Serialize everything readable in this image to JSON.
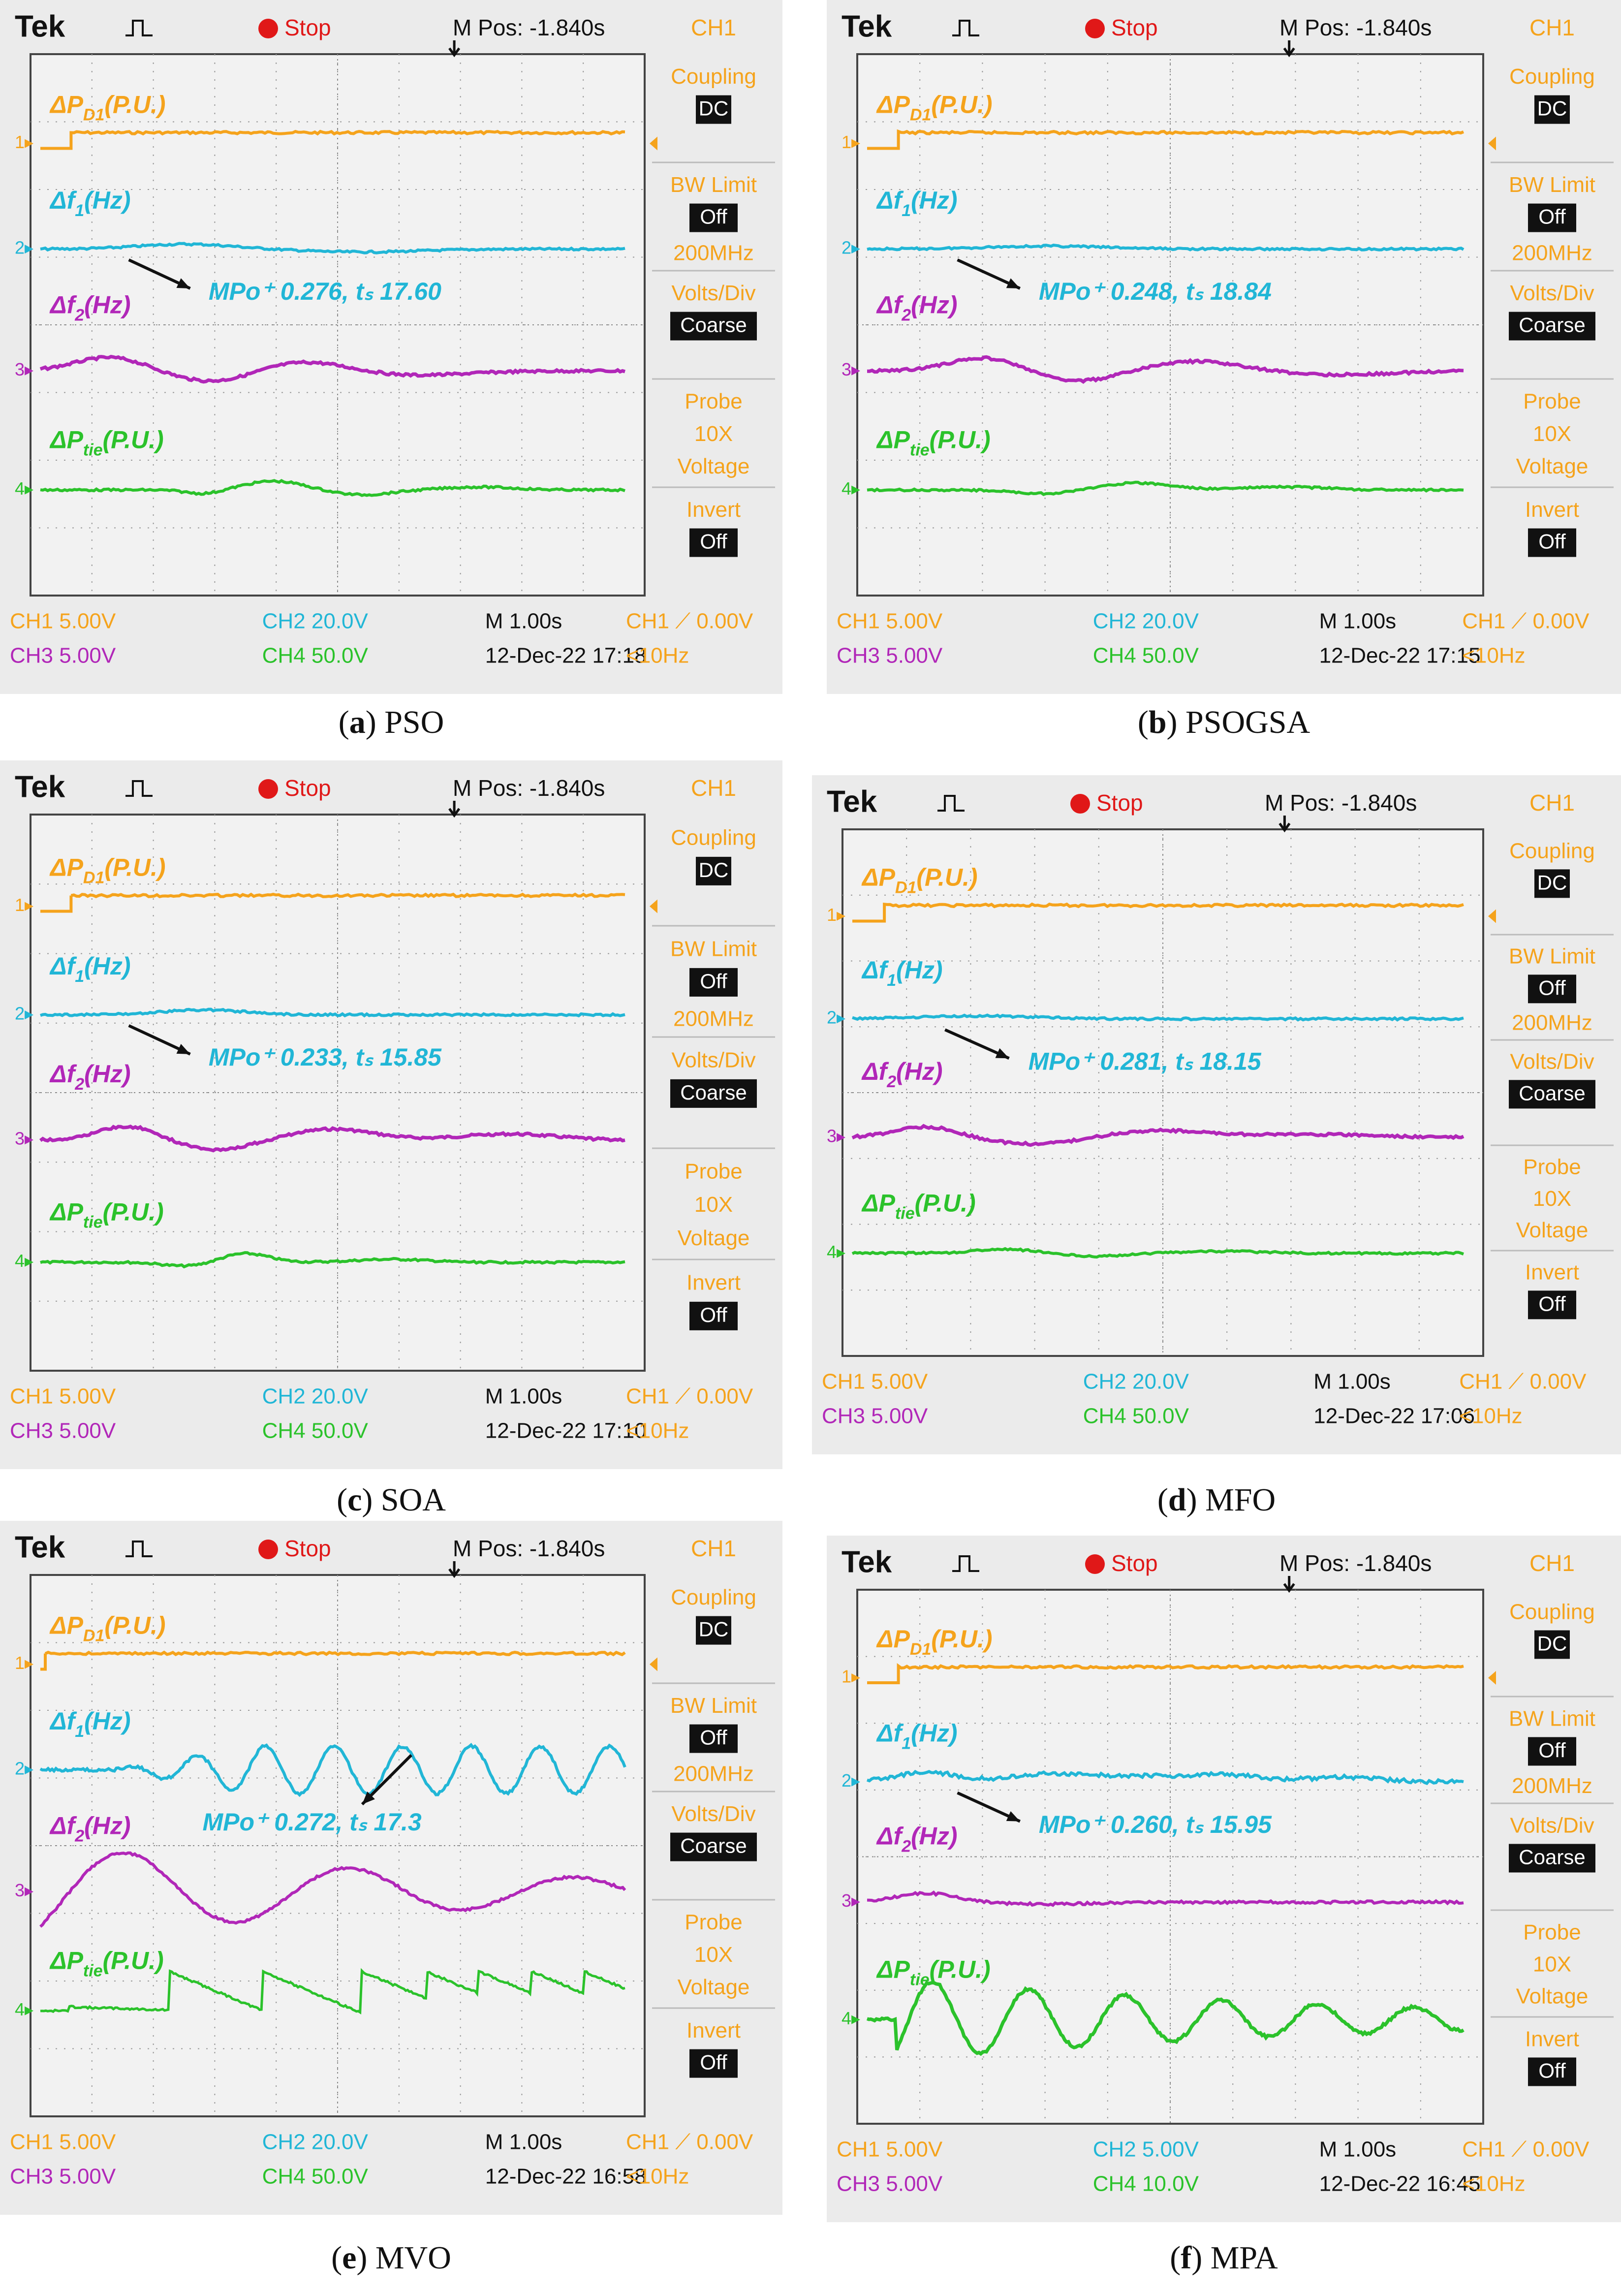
{
  "header": {
    "brand": "Tek",
    "stop": "Stop",
    "mpos": "M Pos: -1.840s",
    "ch_top": "CH1"
  },
  "menu": [
    {
      "title": "Coupling",
      "value": "DC"
    },
    {
      "title": "BW Limit",
      "value": "Off",
      "extra": "200MHz"
    },
    {
      "title": "Volts/Div",
      "value": "Coarse"
    },
    {
      "title": "Probe",
      "lines": [
        "10X",
        "Voltage"
      ]
    },
    {
      "title": "Invert",
      "value": "Off"
    }
  ],
  "labels": {
    "pd1": "ΔP_D1(P.U.)",
    "f1": "Δf_1(Hz)",
    "f2": "Δf_2(Hz)",
    "ptie": "ΔP_tie(P.U.)"
  },
  "colors": {
    "ch1": "#f5a31c",
    "ch2": "#21b6d6",
    "ch3": "#b127b8",
    "ch4": "#2bc22b",
    "screen": "#ebebeb"
  },
  "panels": [
    {
      "id": "a",
      "caption_letter": "a",
      "caption_name": "PSO",
      "mpo": "MPo⁺ 0.276, tₛ 17.60",
      "footer": {
        "ch1": "CH1  5.00V",
        "ch2": "CH2  20.0V",
        "timebase": "M 1.00s",
        "trig": "CH1 ⟋ 0.00V",
        "ch3": "CH3  5.00V",
        "ch4": "CH4  50.0V",
        "date": "12-Dec-22 17:18",
        "freq": "<10Hz"
      }
    },
    {
      "id": "b",
      "caption_letter": "b",
      "caption_name": "PSOGSA",
      "mpo": "MPo⁺ 0.248, tₛ 18.84",
      "footer": {
        "ch1": "CH1  5.00V",
        "ch2": "CH2  20.0V",
        "timebase": "M 1.00s",
        "trig": "CH1 ⟋ 0.00V",
        "ch3": "CH3  5.00V",
        "ch4": "CH4  50.0V",
        "date": "12-Dec-22 17:15",
        "freq": "<10Hz"
      }
    },
    {
      "id": "c",
      "caption_letter": "c",
      "caption_name": "SOA",
      "mpo": "MPo⁺ 0.233, tₛ 15.85",
      "footer": {
        "ch1": "CH1  5.00V",
        "ch2": "CH2  20.0V",
        "timebase": "M 1.00s",
        "trig": "CH1 ⟋ 0.00V",
        "ch3": "CH3  5.00V",
        "ch4": "CH4  50.0V",
        "date": "12-Dec-22 17:10",
        "freq": "<10Hz"
      }
    },
    {
      "id": "d",
      "caption_letter": "d",
      "caption_name": "MFO",
      "mpo": "MPo⁺ 0.281, tₛ 18.15",
      "footer": {
        "ch1": "CH1  5.00V",
        "ch2": "CH2  20.0V",
        "timebase": "M 1.00s",
        "trig": "CH1 ⟋ 0.00V",
        "ch3": "CH3  5.00V",
        "ch4": "CH4  50.0V",
        "date": "12-Dec-22 17:06",
        "freq": "<10Hz"
      }
    },
    {
      "id": "e",
      "caption_letter": "e",
      "caption_name": "MVO",
      "mpo": "MPo⁺ 0.272, tₛ 17.3",
      "footer": {
        "ch1": "CH1  5.00V",
        "ch2": "CH2  20.0V",
        "timebase": "M 1.00s",
        "trig": "CH1 ⟋ 0.00V",
        "ch3": "CH3  5.00V",
        "ch4": "CH4  50.0V",
        "date": "12-Dec-22 16:58",
        "freq": "<10Hz"
      }
    },
    {
      "id": "f",
      "caption_letter": "f",
      "caption_name": "MPA",
      "mpo": "MPo⁺ 0.260, tₛ 15.95",
      "footer": {
        "ch1": "CH1  5.00V",
        "ch2": "CH2  5.00V",
        "timebase": "M 1.00s",
        "trig": "CH1 ⟋ 0.00V",
        "ch3": "CH3  5.00V",
        "ch4": "CH4  10.0V",
        "date": "12-Dec-22 16:45",
        "freq": "<10Hz"
      }
    }
  ]
}
